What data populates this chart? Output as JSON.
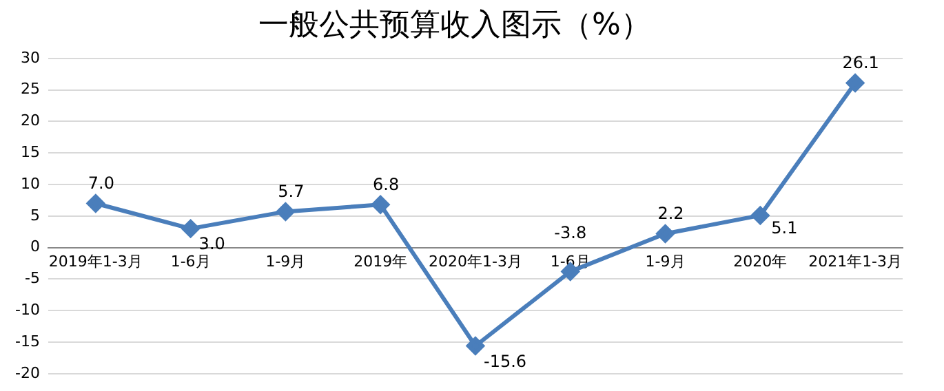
{
  "chart_data": {
    "type": "line",
    "title": "一般公共预算收入图示（%）",
    "categories": [
      "2019年1-3月",
      "1-6月",
      "1-9月",
      "2019年",
      "2020年1-3月",
      "1-6月",
      "1-9月",
      "2020年",
      "2021年1-3月"
    ],
    "series": [
      {
        "color": "#4a7ebb",
        "values": [
          7.0,
          3.0,
          5.7,
          6.8,
          -15.6,
          -3.8,
          2.2,
          5.1,
          26.1
        ],
        "value_labels": [
          "7.0",
          "3.0",
          "5.7",
          "6.8",
          "-15.6",
          "-3.8",
          "2.2",
          "5.1",
          "26.1"
        ]
      }
    ],
    "ylim": [
      -20,
      30
    ],
    "yticks": [
      -20,
      -15,
      -10,
      -5,
      0,
      5,
      10,
      15,
      20,
      25,
      30
    ],
    "grid": "y",
    "legend": false,
    "marker": "diamond",
    "line_style": "solid"
  }
}
